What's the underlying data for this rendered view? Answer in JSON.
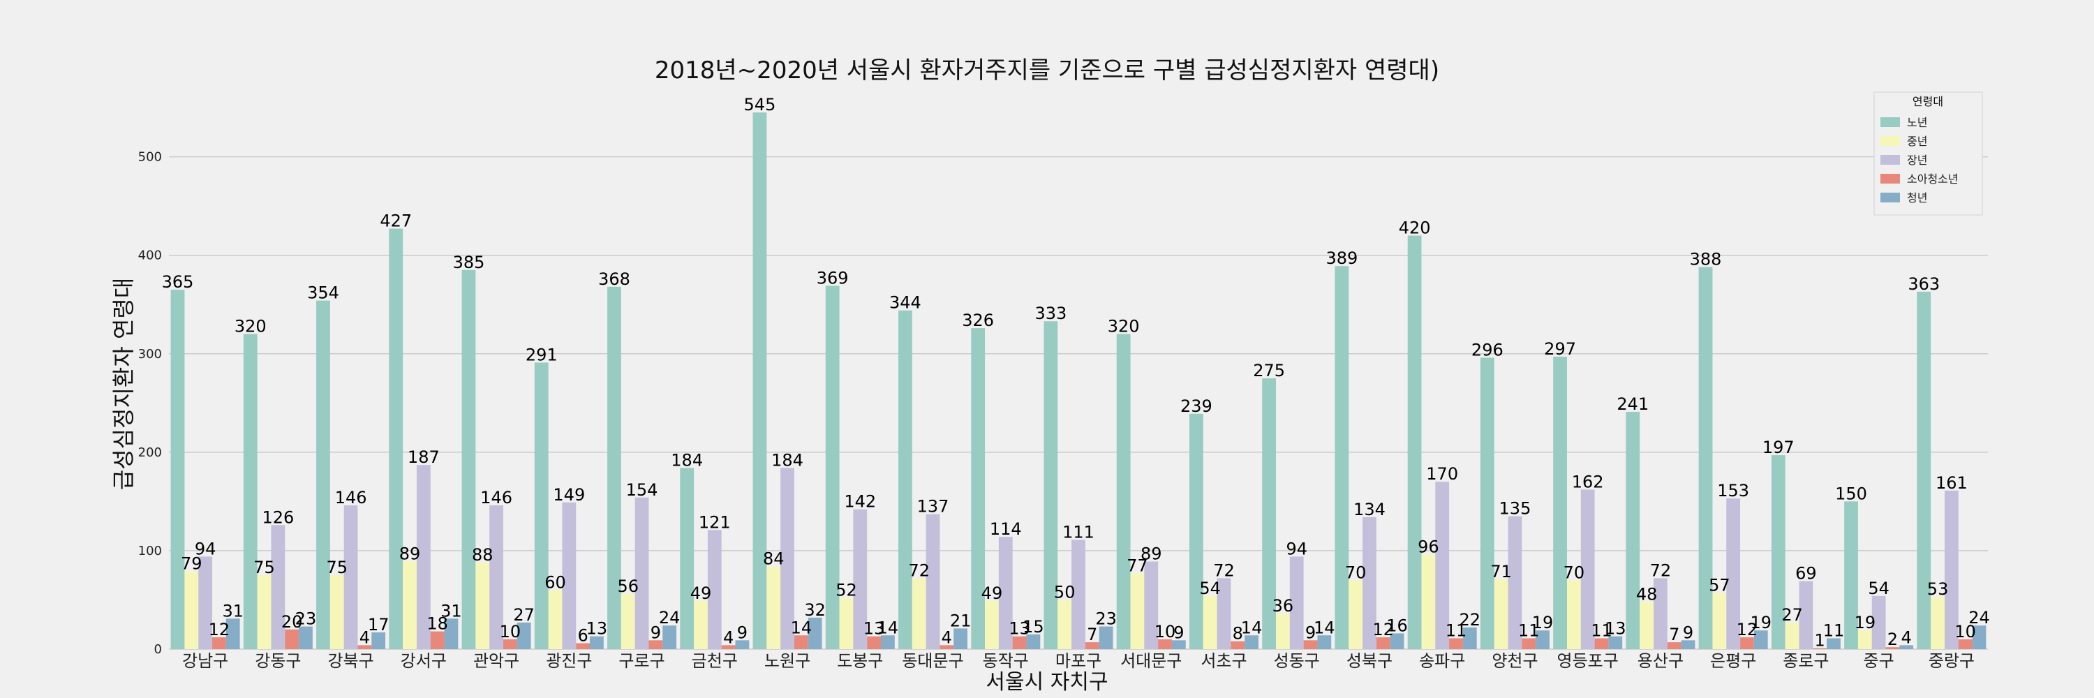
{
  "chart_data": {
    "type": "bar",
    "title": "2018년~2020년 서울시 환자거주지를 기준으로 구별 급성심정지환자 연령대)",
    "xlabel": "서울시 자치구",
    "ylabel": "급성심정지환자 연령대",
    "ylim": [
      0,
      560
    ],
    "yticks": [
      0,
      100,
      200,
      300,
      400,
      500
    ],
    "grid": true,
    "legend": {
      "title": "연령대",
      "placement": "top-right"
    },
    "categories": [
      "강남구",
      "강동구",
      "강북구",
      "강서구",
      "관악구",
      "광진구",
      "구로구",
      "금천구",
      "노원구",
      "도봉구",
      "동대문구",
      "동작구",
      "마포구",
      "서대문구",
      "서초구",
      "성동구",
      "성북구",
      "송파구",
      "양천구",
      "영등포구",
      "용산구",
      "은평구",
      "종로구",
      "중구",
      "중랑구"
    ],
    "series": [
      {
        "name": "노년",
        "color": "#98cbc1",
        "values": [
          365,
          320,
          354,
          427,
          385,
          291,
          368,
          184,
          545,
          369,
          344,
          326,
          333,
          320,
          239,
          275,
          389,
          420,
          296,
          297,
          241,
          388,
          197,
          150,
          363
        ]
      },
      {
        "name": "중년",
        "color": "#f7f6b9",
        "values": [
          79,
          75,
          75,
          89,
          88,
          60,
          56,
          49,
          84,
          52,
          72,
          49,
          50,
          77,
          54,
          36,
          70,
          96,
          71,
          70,
          48,
          57,
          27,
          19,
          53
        ]
      },
      {
        "name": "장년",
        "color": "#c3bfdb",
        "values": [
          94,
          126,
          146,
          187,
          146,
          149,
          154,
          121,
          184,
          142,
          137,
          114,
          111,
          89,
          72,
          94,
          134,
          170,
          135,
          162,
          72,
          153,
          69,
          54,
          161
        ]
      },
      {
        "name": "소아청소년",
        "color": "#e8887b",
        "values": [
          12,
          20,
          4,
          18,
          10,
          6,
          9,
          4,
          14,
          13,
          4,
          13,
          7,
          10,
          8,
          9,
          12,
          11,
          11,
          11,
          7,
          12,
          1,
          2,
          10
        ]
      },
      {
        "name": "청년",
        "color": "#86adc8",
        "values": [
          31,
          23,
          17,
          31,
          27,
          13,
          24,
          9,
          32,
          14,
          21,
          15,
          23,
          9,
          14,
          14,
          16,
          22,
          19,
          13,
          9,
          19,
          11,
          4,
          24
        ]
      }
    ]
  }
}
